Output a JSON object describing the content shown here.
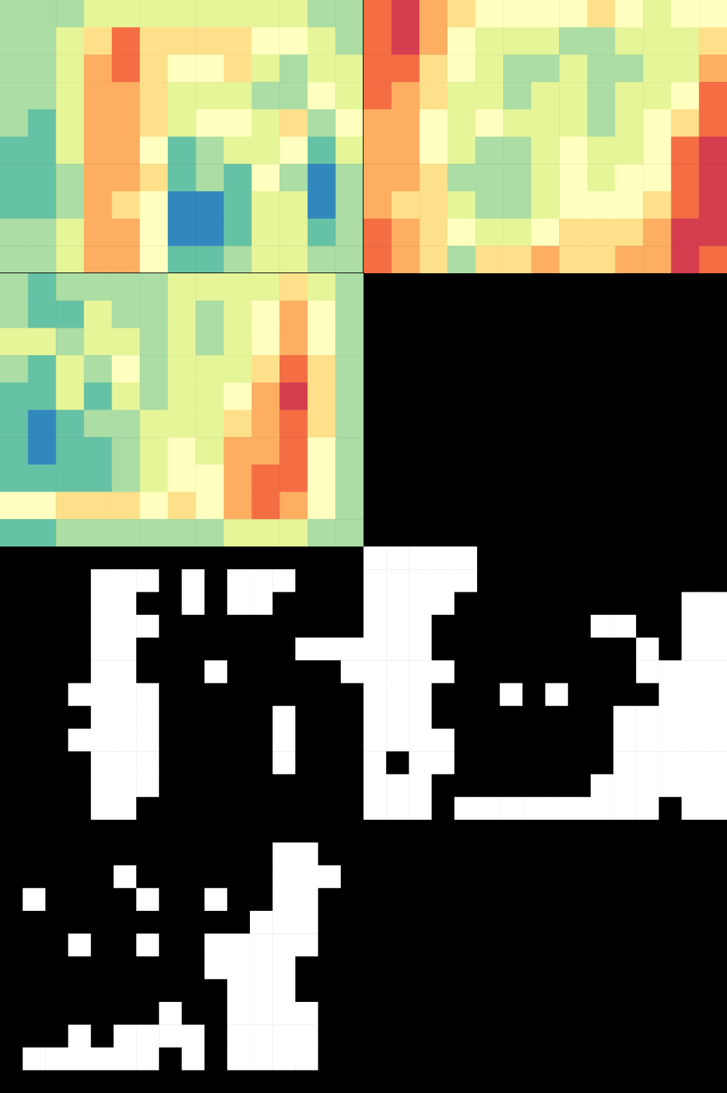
{
  "chart_data": [
    {
      "type": "heatmap",
      "tick_labels": false,
      "xlim": [
        0,
        13
      ],
      "ylim": [
        0,
        10
      ],
      "zlim": [
        0,
        10
      ],
      "cells": [
        [
          3,
          3,
          3,
          4,
          4,
          4,
          4,
          4,
          4,
          4,
          4,
          3,
          3
        ],
        [
          3,
          3,
          4,
          6,
          8,
          6,
          6,
          6,
          6,
          5,
          5,
          4,
          3
        ],
        [
          3,
          3,
          4,
          7,
          8,
          6,
          5,
          5,
          6,
          4,
          3,
          4,
          4
        ],
        [
          3,
          3,
          4,
          7,
          7,
          6,
          4,
          4,
          4,
          3,
          3,
          5,
          4
        ],
        [
          3,
          2,
          4,
          7,
          7,
          6,
          4,
          5,
          5,
          4,
          6,
          3,
          5
        ],
        [
          2,
          2,
          4,
          7,
          7,
          5,
          2,
          3,
          4,
          4,
          5,
          2,
          4
        ],
        [
          2,
          2,
          3,
          7,
          7,
          6,
          2,
          3,
          2,
          5,
          3,
          1,
          3
        ],
        [
          2,
          2,
          3,
          7,
          6,
          5,
          1,
          1,
          2,
          4,
          4,
          1,
          3
        ],
        [
          3,
          3,
          4,
          7,
          7,
          5,
          1,
          1,
          2,
          4,
          4,
          2,
          3
        ],
        [
          3,
          3,
          4,
          7,
          7,
          5,
          2,
          2,
          3,
          4,
          4,
          3,
          3
        ]
      ]
    },
    {
      "type": "heatmap",
      "tick_labels": false,
      "xlim": [
        0,
        13
      ],
      "ylim": [
        0,
        10
      ],
      "zlim": [
        0,
        10
      ],
      "cells": [
        [
          8,
          9,
          7,
          6,
          5,
          5,
          5,
          5,
          6,
          5,
          4,
          5,
          5
        ],
        [
          8,
          9,
          7,
          5,
          4,
          4,
          4,
          3,
          3,
          4,
          4,
          4,
          6
        ],
        [
          8,
          8,
          6,
          5,
          4,
          3,
          3,
          4,
          3,
          3,
          4,
          4,
          7
        ],
        [
          8,
          7,
          6,
          4,
          4,
          3,
          4,
          4,
          3,
          4,
          4,
          5,
          8
        ],
        [
          7,
          7,
          5,
          4,
          5,
          4,
          4,
          4,
          3,
          4,
          5,
          6,
          8
        ],
        [
          7,
          7,
          5,
          4,
          3,
          3,
          4,
          5,
          4,
          4,
          5,
          8,
          9
        ],
        [
          7,
          7,
          6,
          3,
          3,
          3,
          4,
          5,
          4,
          5,
          5,
          8,
          9
        ],
        [
          7,
          6,
          6,
          4,
          3,
          3,
          4,
          5,
          5,
          5,
          6,
          8,
          9
        ],
        [
          8,
          7,
          6,
          5,
          4,
          4,
          5,
          6,
          6,
          6,
          7,
          9,
          9
        ],
        [
          8,
          7,
          6,
          3,
          6,
          6,
          7,
          6,
          6,
          7,
          7,
          9,
          8
        ]
      ]
    },
    {
      "type": "heatmap",
      "tick_labels": false,
      "xlim": [
        0,
        13
      ],
      "ylim": [
        0,
        10
      ],
      "zlim": [
        0,
        10
      ],
      "cells": [
        [
          3,
          2,
          3,
          3,
          3,
          3,
          4,
          4,
          4,
          4,
          6,
          4,
          3
        ],
        [
          3,
          2,
          2,
          4,
          3,
          3,
          4,
          3,
          4,
          5,
          7,
          5,
          3
        ],
        [
          4,
          4,
          3,
          4,
          4,
          3,
          4,
          3,
          4,
          5,
          7,
          5,
          3
        ],
        [
          3,
          2,
          4,
          3,
          5,
          3,
          4,
          4,
          4,
          6,
          8,
          6,
          3
        ],
        [
          2,
          2,
          4,
          2,
          4,
          3,
          4,
          4,
          5,
          7,
          9,
          6,
          3
        ],
        [
          2,
          1,
          2,
          3,
          3,
          4,
          4,
          4,
          6,
          7,
          8,
          6,
          3
        ],
        [
          2,
          1,
          2,
          2,
          3,
          4,
          5,
          4,
          7,
          7,
          8,
          5,
          3
        ],
        [
          2,
          2,
          2,
          2,
          3,
          4,
          5,
          5,
          7,
          8,
          8,
          5,
          3
        ],
        [
          5,
          5,
          6,
          6,
          6,
          5,
          6,
          5,
          7,
          8,
          7,
          5,
          3
        ],
        [
          2,
          2,
          3,
          3,
          3,
          3,
          3,
          3,
          4,
          4,
          4,
          3,
          3
        ]
      ]
    },
    {
      "type": "heatmap",
      "tick_labels": false,
      "xlim": [
        0,
        16
      ],
      "ylim": [
        0,
        12
      ],
      "zlim": [
        0,
        1
      ],
      "colors": [
        "#000000",
        "#ffffff"
      ],
      "cells": [
        [
          0,
          0,
          0,
          0,
          0,
          0,
          0,
          0,
          0,
          0,
          0,
          0,
          0,
          0,
          0,
          0
        ],
        [
          0,
          0,
          0,
          0,
          1,
          1,
          1,
          0,
          1,
          0,
          1,
          1,
          1,
          0,
          0,
          0
        ],
        [
          0,
          0,
          0,
          0,
          1,
          1,
          0,
          0,
          1,
          0,
          1,
          1,
          0,
          0,
          0,
          0
        ],
        [
          0,
          0,
          0,
          0,
          1,
          1,
          1,
          0,
          0,
          0,
          0,
          0,
          0,
          0,
          0,
          0
        ],
        [
          0,
          0,
          0,
          0,
          1,
          1,
          0,
          0,
          0,
          0,
          0,
          0,
          0,
          1,
          1,
          1
        ],
        [
          0,
          0,
          0,
          0,
          1,
          1,
          0,
          0,
          0,
          1,
          0,
          0,
          0,
          0,
          0,
          1
        ],
        [
          0,
          0,
          0,
          1,
          1,
          1,
          1,
          0,
          0,
          0,
          0,
          0,
          0,
          0,
          0,
          0
        ],
        [
          0,
          0,
          0,
          0,
          1,
          1,
          1,
          0,
          0,
          0,
          0,
          0,
          1,
          0,
          0,
          0
        ],
        [
          0,
          0,
          0,
          1,
          1,
          1,
          1,
          0,
          0,
          0,
          0,
          0,
          1,
          0,
          0,
          0
        ],
        [
          0,
          0,
          0,
          0,
          1,
          1,
          1,
          0,
          0,
          0,
          0,
          0,
          1,
          0,
          0,
          0
        ],
        [
          0,
          0,
          0,
          0,
          1,
          1,
          1,
          0,
          0,
          0,
          0,
          0,
          0,
          0,
          0,
          0
        ],
        [
          0,
          0,
          0,
          0,
          1,
          1,
          0,
          0,
          0,
          0,
          0,
          0,
          0,
          0,
          0,
          0
        ]
      ]
    },
    {
      "type": "heatmap",
      "tick_labels": false,
      "xlim": [
        0,
        16
      ],
      "ylim": [
        0,
        12
      ],
      "zlim": [
        0,
        1
      ],
      "colors": [
        "#000000",
        "#ffffff"
      ],
      "cells": [
        [
          1,
          1,
          1,
          1,
          1,
          0,
          0,
          0,
          0,
          0,
          0,
          0,
          0,
          0,
          0,
          0
        ],
        [
          1,
          1,
          1,
          1,
          1,
          0,
          0,
          0,
          0,
          0,
          0,
          0,
          0,
          0,
          0,
          0
        ],
        [
          1,
          1,
          1,
          1,
          0,
          0,
          0,
          0,
          0,
          0,
          0,
          0,
          0,
          0,
          1,
          1
        ],
        [
          1,
          1,
          1,
          0,
          0,
          0,
          0,
          0,
          0,
          0,
          1,
          1,
          0,
          0,
          1,
          1
        ],
        [
          1,
          1,
          1,
          0,
          0,
          0,
          0,
          0,
          0,
          0,
          0,
          0,
          1,
          0,
          1,
          1
        ],
        [
          1,
          1,
          1,
          1,
          0,
          0,
          0,
          0,
          0,
          0,
          0,
          0,
          1,
          1,
          1,
          1
        ],
        [
          1,
          1,
          1,
          0,
          0,
          0,
          1,
          0,
          1,
          0,
          0,
          0,
          0,
          1,
          1,
          1
        ],
        [
          1,
          1,
          1,
          0,
          0,
          0,
          0,
          0,
          0,
          0,
          0,
          1,
          1,
          1,
          1,
          1
        ],
        [
          1,
          1,
          1,
          1,
          0,
          0,
          0,
          0,
          0,
          0,
          0,
          1,
          1,
          1,
          1,
          1
        ],
        [
          1,
          0,
          1,
          1,
          0,
          0,
          0,
          0,
          0,
          0,
          0,
          1,
          1,
          1,
          1,
          1
        ],
        [
          1,
          1,
          1,
          0,
          0,
          0,
          0,
          0,
          0,
          0,
          1,
          1,
          1,
          1,
          1,
          1
        ],
        [
          1,
          1,
          1,
          0,
          1,
          1,
          1,
          1,
          1,
          1,
          1,
          1,
          1,
          0,
          1,
          1
        ]
      ]
    },
    {
      "type": "heatmap",
      "tick_labels": false,
      "xlim": [
        0,
        16
      ],
      "ylim": [
        0,
        12
      ],
      "zlim": [
        0,
        1
      ],
      "colors": [
        "#000000",
        "#ffffff"
      ],
      "cells": [
        [
          0,
          0,
          0,
          0,
          0,
          0,
          0,
          0,
          0,
          0,
          0,
          0,
          0,
          0,
          0,
          0
        ],
        [
          0,
          0,
          0,
          0,
          0,
          0,
          0,
          0,
          0,
          0,
          0,
          0,
          1,
          1,
          0,
          0
        ],
        [
          0,
          0,
          0,
          0,
          0,
          1,
          0,
          0,
          0,
          0,
          0,
          0,
          1,
          1,
          1,
          0
        ],
        [
          0,
          1,
          0,
          0,
          0,
          0,
          1,
          0,
          0,
          1,
          0,
          0,
          1,
          1,
          0,
          0
        ],
        [
          0,
          0,
          0,
          0,
          0,
          0,
          0,
          0,
          0,
          0,
          0,
          1,
          1,
          1,
          0,
          0
        ],
        [
          0,
          0,
          0,
          1,
          0,
          0,
          1,
          0,
          0,
          1,
          1,
          1,
          1,
          1,
          0,
          0
        ],
        [
          0,
          0,
          0,
          0,
          0,
          0,
          0,
          0,
          0,
          1,
          1,
          1,
          1,
          0,
          0,
          0
        ],
        [
          0,
          0,
          0,
          0,
          0,
          0,
          0,
          0,
          0,
          0,
          1,
          1,
          1,
          0,
          0,
          0
        ],
        [
          0,
          0,
          0,
          0,
          0,
          0,
          0,
          1,
          0,
          0,
          1,
          1,
          1,
          1,
          0,
          0
        ],
        [
          0,
          0,
          0,
          1,
          0,
          1,
          1,
          1,
          1,
          0,
          1,
          1,
          1,
          1,
          0,
          0
        ],
        [
          0,
          1,
          1,
          1,
          1,
          1,
          1,
          0,
          1,
          0,
          1,
          1,
          1,
          1,
          0,
          0
        ],
        [
          0,
          0,
          0,
          0,
          0,
          0,
          0,
          0,
          0,
          0,
          0,
          0,
          0,
          0,
          0,
          0
        ]
      ]
    }
  ]
}
